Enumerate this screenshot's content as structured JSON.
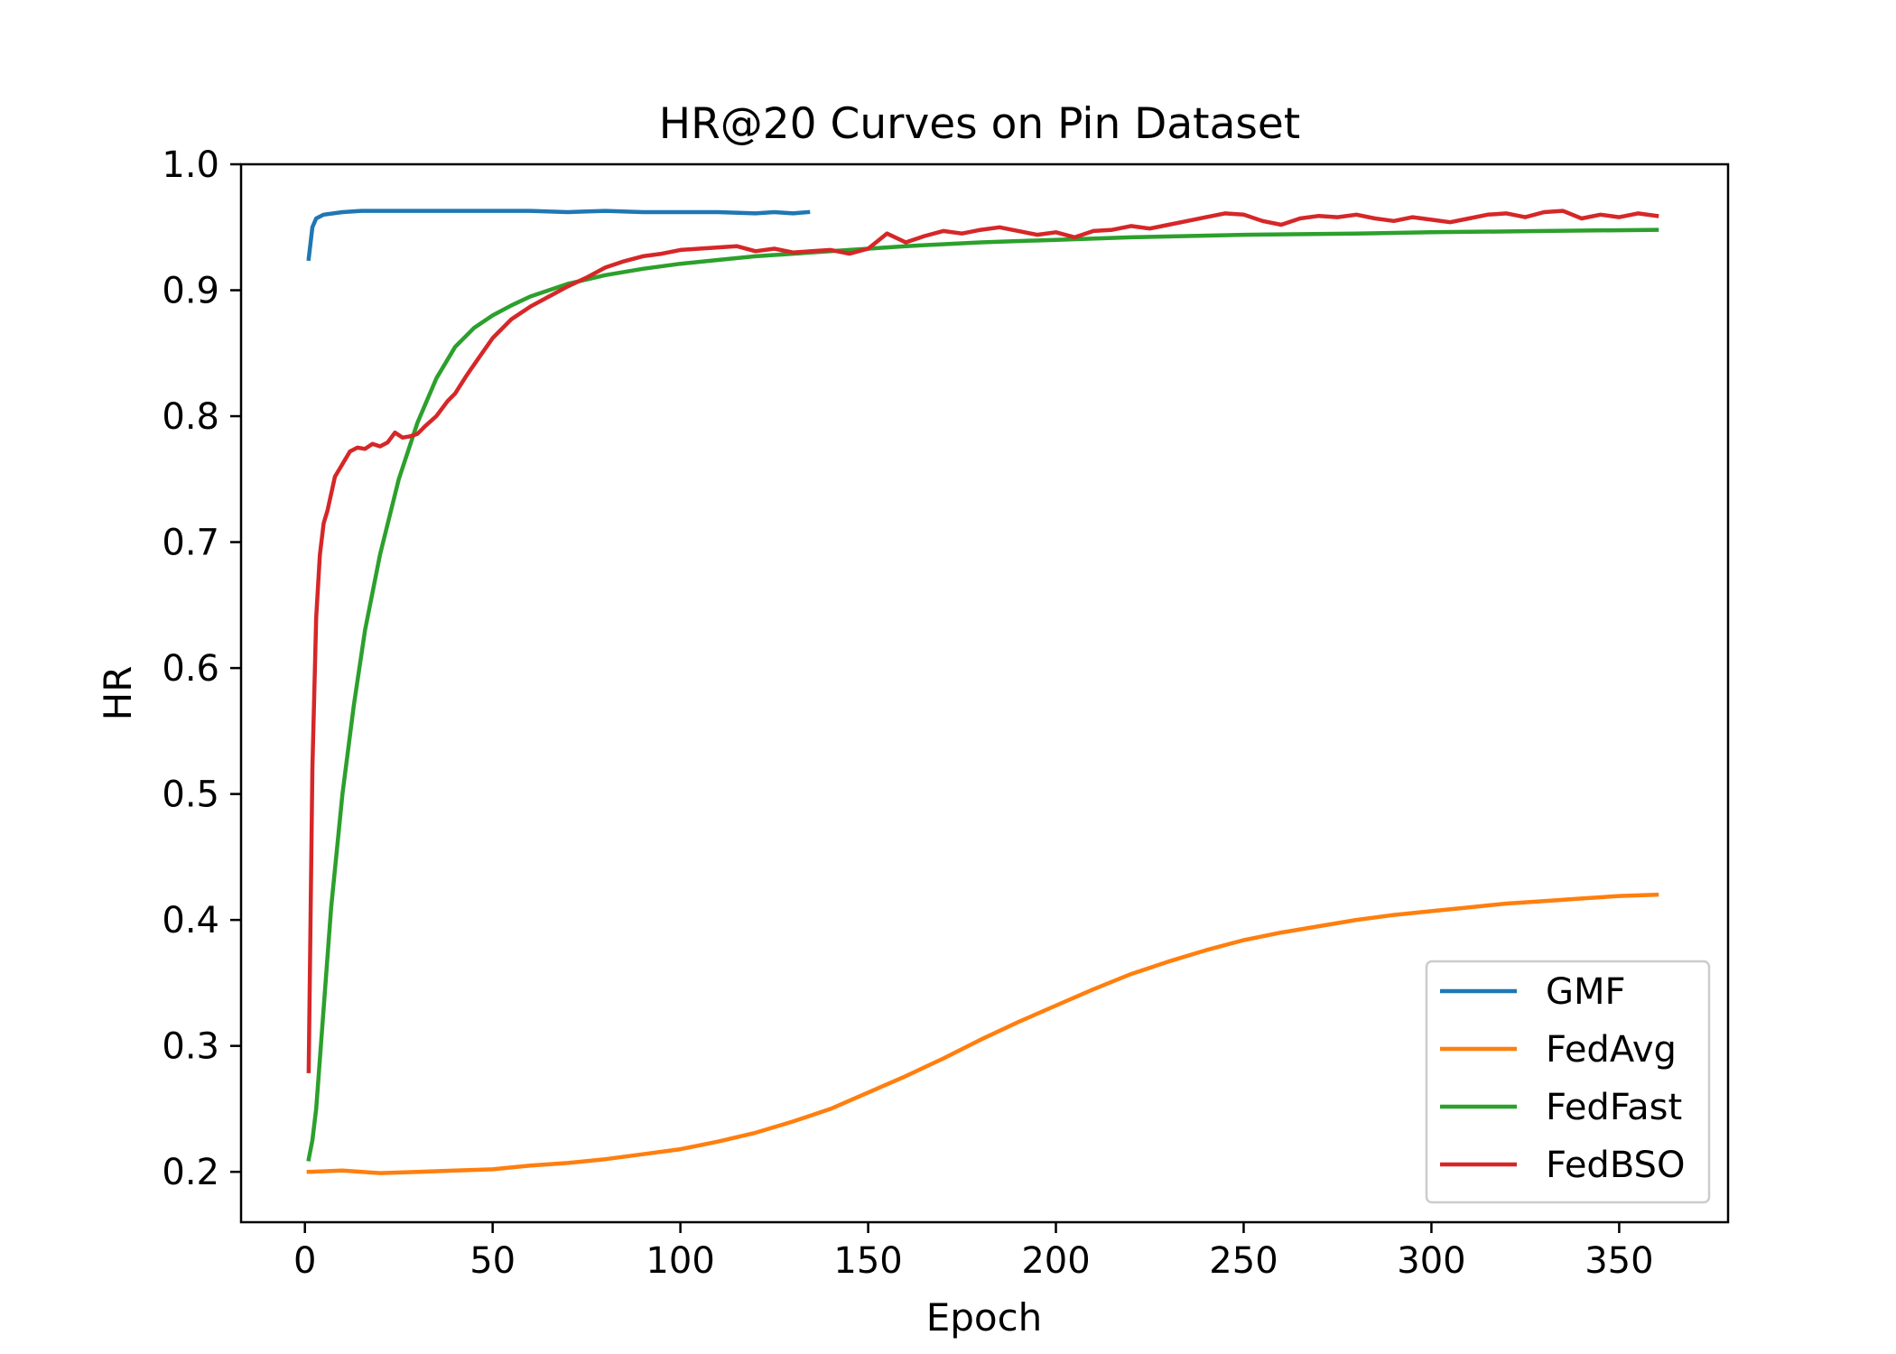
{
  "chart_data": {
    "type": "line",
    "title": "HR@20 Curves on Pin Dataset",
    "xlabel": "Epoch",
    "ylabel": "HR",
    "xlim": [
      -17,
      379
    ],
    "ylim": [
      0.16,
      1.0
    ],
    "xticks": [
      0,
      50,
      100,
      150,
      200,
      250,
      300,
      350
    ],
    "yticks": [
      0.2,
      0.3,
      0.4,
      0.5,
      0.6,
      0.7,
      0.8,
      0.9,
      1.0
    ],
    "ytick_labels": [
      "0.2",
      "0.3",
      "0.4",
      "0.5",
      "0.6",
      "0.7",
      "0.8",
      "0.9",
      "1.0"
    ],
    "grid": false,
    "legend_position": "lower-right",
    "series": [
      {
        "name": "GMF",
        "color": "#1f77b4",
        "x": [
          1,
          2,
          3,
          5,
          10,
          15,
          20,
          30,
          40,
          50,
          60,
          70,
          80,
          90,
          100,
          110,
          120,
          125,
          130,
          134
        ],
        "y": [
          0.925,
          0.95,
          0.957,
          0.96,
          0.962,
          0.963,
          0.963,
          0.963,
          0.963,
          0.963,
          0.963,
          0.962,
          0.963,
          0.962,
          0.962,
          0.962,
          0.961,
          0.962,
          0.961,
          0.962
        ]
      },
      {
        "name": "FedAvg",
        "color": "#ff7f0e",
        "x": [
          1,
          10,
          20,
          30,
          40,
          50,
          60,
          70,
          80,
          90,
          100,
          110,
          120,
          130,
          140,
          150,
          160,
          170,
          180,
          190,
          200,
          210,
          220,
          230,
          240,
          250,
          260,
          270,
          280,
          290,
          300,
          310,
          320,
          330,
          340,
          350,
          360
        ],
        "y": [
          0.2,
          0.201,
          0.199,
          0.2,
          0.201,
          0.202,
          0.205,
          0.207,
          0.21,
          0.214,
          0.218,
          0.224,
          0.231,
          0.24,
          0.25,
          0.263,
          0.276,
          0.29,
          0.305,
          0.319,
          0.332,
          0.345,
          0.357,
          0.367,
          0.376,
          0.384,
          0.39,
          0.395,
          0.4,
          0.404,
          0.407,
          0.41,
          0.413,
          0.415,
          0.417,
          0.419,
          0.42
        ]
      },
      {
        "name": "FedFast",
        "color": "#2ca02c",
        "x": [
          1,
          2,
          3,
          5,
          7,
          10,
          13,
          16,
          20,
          25,
          30,
          35,
          40,
          45,
          50,
          55,
          60,
          70,
          80,
          90,
          100,
          110,
          120,
          130,
          140,
          150,
          160,
          180,
          200,
          220,
          250,
          280,
          300,
          330,
          360
        ],
        "y": [
          0.21,
          0.225,
          0.25,
          0.33,
          0.41,
          0.5,
          0.57,
          0.63,
          0.69,
          0.75,
          0.795,
          0.83,
          0.855,
          0.87,
          0.88,
          0.888,
          0.895,
          0.905,
          0.912,
          0.917,
          0.921,
          0.924,
          0.927,
          0.929,
          0.931,
          0.933,
          0.935,
          0.938,
          0.94,
          0.942,
          0.944,
          0.945,
          0.946,
          0.947,
          0.948
        ]
      },
      {
        "name": "FedBSO",
        "color": "#d62728",
        "x": [
          1,
          2,
          3,
          4,
          5,
          6,
          8,
          10,
          12,
          14,
          16,
          18,
          20,
          22,
          24,
          26,
          28,
          30,
          32,
          35,
          38,
          40,
          43,
          46,
          50,
          55,
          60,
          65,
          70,
          75,
          80,
          85,
          90,
          95,
          100,
          105,
          110,
          115,
          120,
          125,
          130,
          135,
          140,
          145,
          150,
          155,
          160,
          165,
          170,
          175,
          180,
          185,
          190,
          195,
          200,
          205,
          210,
          215,
          220,
          225,
          230,
          235,
          240,
          245,
          250,
          255,
          260,
          265,
          270,
          275,
          280,
          285,
          290,
          295,
          300,
          305,
          310,
          315,
          320,
          325,
          330,
          335,
          340,
          345,
          350,
          355,
          360
        ],
        "y": [
          0.28,
          0.52,
          0.64,
          0.69,
          0.715,
          0.725,
          0.752,
          0.762,
          0.772,
          0.775,
          0.774,
          0.778,
          0.776,
          0.779,
          0.787,
          0.783,
          0.784,
          0.786,
          0.792,
          0.8,
          0.812,
          0.818,
          0.832,
          0.845,
          0.862,
          0.877,
          0.887,
          0.895,
          0.903,
          0.91,
          0.918,
          0.923,
          0.927,
          0.929,
          0.932,
          0.933,
          0.934,
          0.935,
          0.931,
          0.933,
          0.93,
          0.931,
          0.932,
          0.929,
          0.933,
          0.945,
          0.938,
          0.943,
          0.947,
          0.945,
          0.948,
          0.95,
          0.947,
          0.944,
          0.946,
          0.942,
          0.947,
          0.948,
          0.951,
          0.949,
          0.952,
          0.955,
          0.958,
          0.961,
          0.96,
          0.955,
          0.952,
          0.957,
          0.959,
          0.958,
          0.96,
          0.957,
          0.955,
          0.958,
          0.956,
          0.954,
          0.957,
          0.96,
          0.961,
          0.958,
          0.962,
          0.963,
          0.957,
          0.96,
          0.958,
          0.961,
          0.959
        ]
      }
    ]
  }
}
